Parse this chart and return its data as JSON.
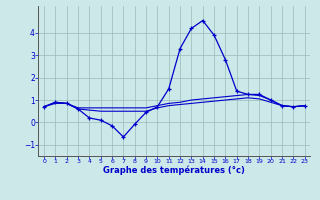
{
  "title": "Graphe des températures (°c)",
  "bg_color": "#cce8e8",
  "line_color": "#0000cc",
  "grid_color": "#99bbbb",
  "axis_color": "#333333",
  "text_color": "#0000cc",
  "xlim": [
    -0.5,
    23.5
  ],
  "ylim": [
    -1.5,
    5.2
  ],
  "yticks": [
    -1,
    0,
    1,
    2,
    3,
    4
  ],
  "xticks": [
    0,
    1,
    2,
    3,
    4,
    5,
    6,
    7,
    8,
    9,
    10,
    11,
    12,
    13,
    14,
    15,
    16,
    17,
    18,
    19,
    20,
    21,
    22,
    23
  ],
  "series1_x": [
    0,
    1,
    2,
    3,
    4,
    5,
    6,
    7,
    8,
    9,
    10,
    11,
    12,
    13,
    14,
    15,
    16,
    17,
    18,
    19,
    20,
    21,
    22,
    23
  ],
  "series1_y": [
    0.7,
    0.9,
    0.85,
    0.6,
    0.2,
    0.1,
    -0.15,
    -0.65,
    -0.08,
    0.45,
    0.7,
    1.5,
    3.3,
    4.2,
    4.55,
    3.9,
    2.8,
    1.4,
    1.25,
    1.25,
    1.0,
    0.75,
    0.7,
    0.75
  ],
  "series2_x": [
    0,
    1,
    2,
    3,
    4,
    5,
    6,
    7,
    8,
    9,
    10,
    11,
    12,
    13,
    14,
    15,
    16,
    17,
    18,
    19,
    20,
    21,
    22,
    23
  ],
  "series2_y": [
    0.7,
    0.9,
    0.85,
    0.65,
    0.65,
    0.65,
    0.65,
    0.65,
    0.65,
    0.65,
    0.75,
    0.85,
    0.9,
    1.0,
    1.05,
    1.1,
    1.15,
    1.2,
    1.25,
    1.2,
    1.0,
    0.75,
    0.7,
    0.75
  ],
  "series3_x": [
    0,
    1,
    2,
    3,
    4,
    5,
    6,
    7,
    8,
    9,
    10,
    11,
    12,
    13,
    14,
    15,
    16,
    17,
    18,
    19,
    20,
    21,
    22,
    23
  ],
  "series3_y": [
    0.7,
    0.85,
    0.85,
    0.6,
    0.55,
    0.5,
    0.5,
    0.5,
    0.5,
    0.5,
    0.65,
    0.75,
    0.8,
    0.85,
    0.9,
    0.95,
    1.0,
    1.05,
    1.1,
    1.05,
    0.9,
    0.75,
    0.7,
    0.75
  ]
}
